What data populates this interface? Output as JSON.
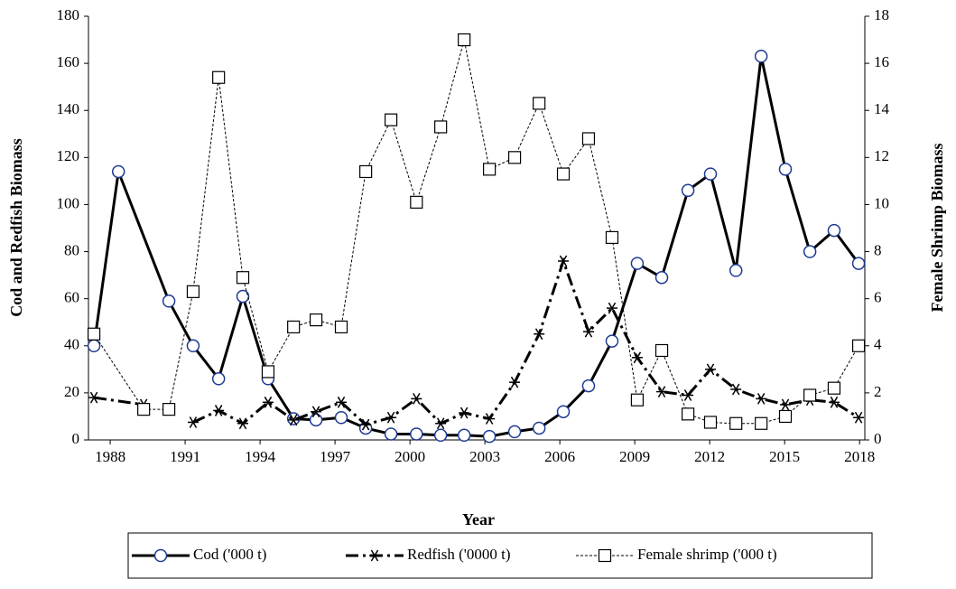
{
  "chart_data": {
    "type": "line",
    "x_label": "Year",
    "y_label": "Cod  and Redfish Biomass",
    "y2_label": "Female Shrimp Biomass",
    "xlim": [
      1987.13,
      2018.21
    ],
    "xticks": [
      1988,
      1991,
      1994,
      1997,
      2000,
      2003,
      2006,
      2009,
      2012,
      2015,
      2018
    ],
    "ylim": [
      0,
      180
    ],
    "yticks": [
      0,
      20,
      40,
      60,
      80,
      100,
      120,
      140,
      160,
      180
    ],
    "y2lim": [
      0,
      18
    ],
    "y2ticks": [
      0,
      2,
      4,
      6,
      8,
      10,
      12,
      14,
      16,
      18
    ],
    "legend": "bottom",
    "series": [
      {
        "name": "Cod ('000 t)",
        "color": "#000000",
        "marker_color": "#1f3a93",
        "marker": "circle",
        "line_style": "solid",
        "x": [
          1987.35,
          1988.33,
          1990.35,
          1991.32,
          1992.34,
          1993.31,
          1994.32,
          1995.34,
          1996.24,
          1997.25,
          1998.23,
          1999.24,
          2000.26,
          2001.23,
          2002.17,
          2003.18,
          2004.19,
          2005.17,
          2006.14,
          2007.15,
          2008.09,
          2009.1,
          2010.08,
          2011.13,
          2012.03,
          2013.05,
          2014.06,
          2015.03,
          2016.01,
          2016.98,
          2017.96
        ],
        "values": [
          40,
          114,
          59,
          40,
          26,
          61,
          26,
          9,
          8.5,
          9.5,
          5,
          2.5,
          2.5,
          2,
          2,
          1.5,
          3.5,
          5,
          12,
          23,
          42,
          75,
          69,
          106,
          113,
          72,
          163,
          115,
          80,
          89,
          75
        ]
      },
      {
        "name": "Redfish ('0000 t)",
        "color": "#000000",
        "marker_color": "#000000",
        "marker": "star",
        "line_style": "dashdot",
        "x": [
          1987.35,
          1989.34,
          1990.35,
          1991.32,
          1992.34,
          1993.31,
          1994.32,
          1995.34,
          1996.24,
          1997.25,
          1998.23,
          1999.24,
          2000.26,
          2001.23,
          2002.17,
          2003.18,
          2004.19,
          2005.17,
          2006.14,
          2007.15,
          2008.09,
          2009.1,
          2010.08,
          2011.13,
          2012.03,
          2013.05,
          2014.06,
          2015.03,
          2016.01,
          2016.98,
          2017.96
        ],
        "values": [
          18,
          15,
          null,
          7.5,
          12.5,
          7,
          16,
          8.5,
          12,
          16,
          6.5,
          9.5,
          17.5,
          7,
          11.5,
          9,
          24.5,
          45,
          76,
          46,
          56,
          35,
          20.5,
          19,
          30,
          21.5,
          17.5,
          15,
          17,
          16,
          9.5
        ]
      },
      {
        "name": "Female shrimp ('000 t)",
        "color": "#000000",
        "marker_color": "#000000",
        "marker": "square",
        "line_style": "dotted",
        "axis": "y2",
        "x": [
          1987.35,
          1989.34,
          1990.35,
          1991.32,
          1992.34,
          1993.31,
          1994.32,
          1995.34,
          1996.24,
          1997.25,
          1998.23,
          1999.24,
          2000.26,
          2001.23,
          2002.17,
          2003.18,
          2004.19,
          2005.17,
          2006.14,
          2007.15,
          2008.09,
          2009.1,
          2010.08,
          2011.13,
          2012.03,
          2013.05,
          2014.06,
          2015.03,
          2016.01,
          2016.98,
          2017.96
        ],
        "values": [
          4.5,
          1.3,
          1.3,
          6.3,
          15.4,
          6.9,
          2.9,
          4.8,
          5.1,
          4.8,
          11.4,
          13.6,
          10.1,
          13.3,
          17,
          11.5,
          12,
          14.3,
          11.3,
          12.8,
          8.6,
          1.7,
          3.8,
          1.1,
          0.75,
          0.7,
          0.7,
          1,
          1.9,
          2.2,
          4
        ]
      }
    ]
  }
}
